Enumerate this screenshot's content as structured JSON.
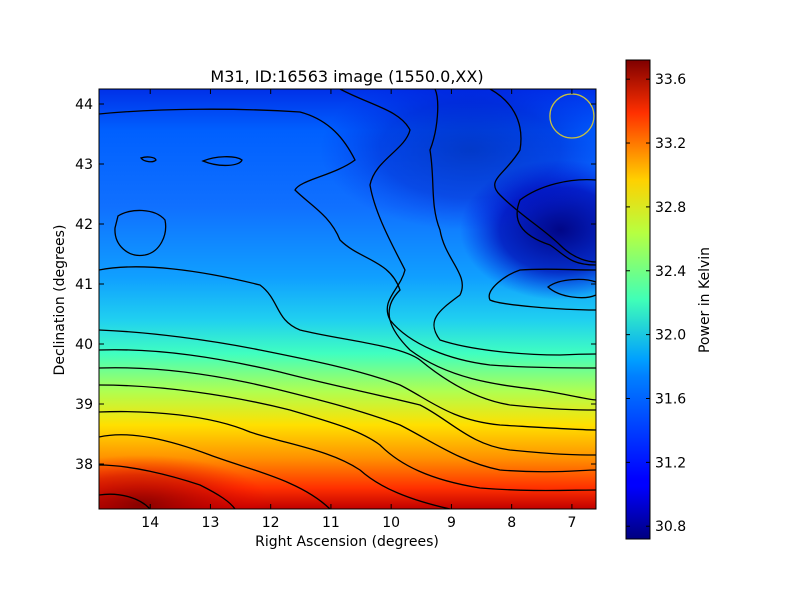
{
  "chart_data": {
    "type": "heatmap",
    "title": "M31, ID:16563 image (1550.0,XX)",
    "xlabel": "Right Ascension (degrees)",
    "ylabel": "Declination (degrees)",
    "xlim": [
      14.85,
      6.6
    ],
    "ylim": [
      37.25,
      44.25
    ],
    "x_ticks": [
      14,
      13,
      12,
      11,
      10,
      9,
      8,
      7
    ],
    "y_ticks": [
      38,
      39,
      40,
      41,
      42,
      43,
      44
    ],
    "colorbar": {
      "label": "Power in Kelvin",
      "range": [
        30.72,
        33.72
      ],
      "ticks": [
        "30.8",
        "31.2",
        "31.6",
        "32.0",
        "32.4",
        "32.8",
        "33.2",
        "33.6"
      ],
      "colormap": "jet"
    },
    "grid": false,
    "marker": {
      "shape": "circle",
      "ra": 7.0,
      "dec": 43.8,
      "color": "#c8c040"
    },
    "contour_color": "#000000"
  }
}
